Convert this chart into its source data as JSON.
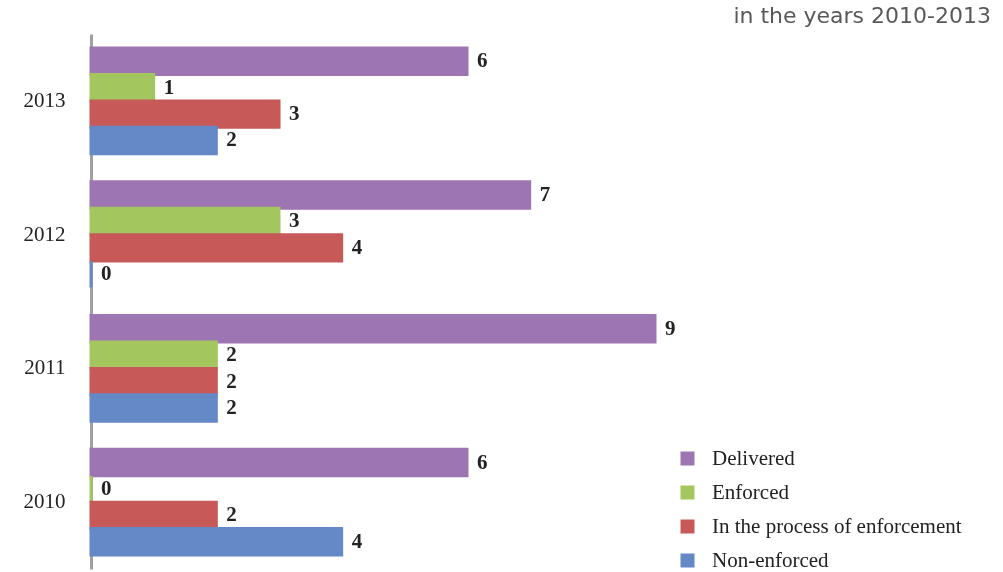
{
  "chart_data": {
    "type": "bar",
    "orientation": "horizontal",
    "title": "in the years 2010-2013",
    "categories": [
      "2013",
      "2012",
      "2011",
      "2010"
    ],
    "series": [
      {
        "name": "Delivered",
        "color": "#9d75b2",
        "values": [
          6,
          7,
          9,
          6
        ]
      },
      {
        "name": "Enforced",
        "color": "#a3c65e",
        "values": [
          1,
          3,
          2,
          0
        ]
      },
      {
        "name": "In the process of enforcement",
        "color": "#c75a59",
        "values": [
          3,
          4,
          2,
          2
        ]
      },
      {
        "name": "Non-enforced",
        "color": "#6588c6",
        "values": [
          2,
          0,
          2,
          4
        ]
      }
    ],
    "data_labels": true,
    "legend": "bottom right",
    "tick_labels": "y"
  }
}
